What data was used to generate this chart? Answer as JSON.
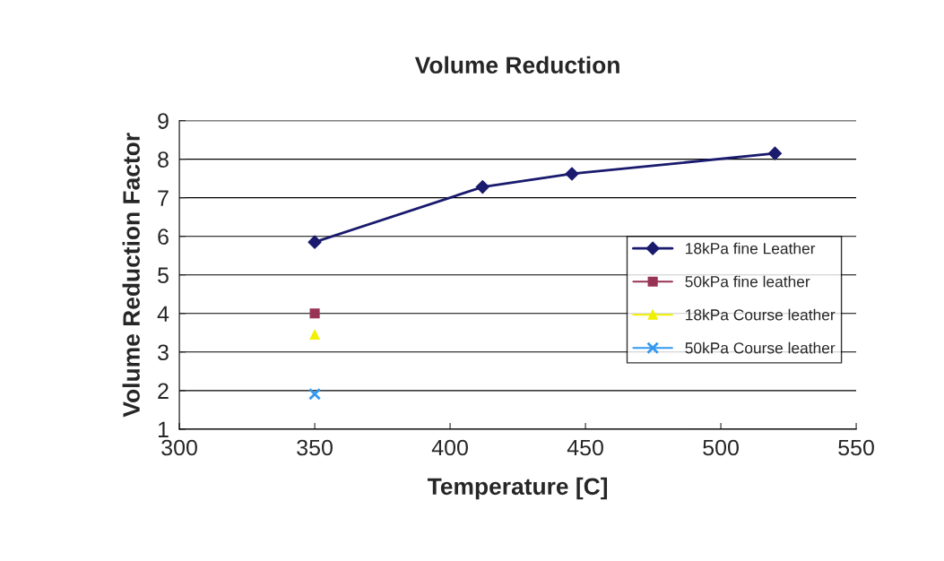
{
  "chart_data": {
    "type": "line",
    "title": "Volume Reduction",
    "xlabel": "Temperature [C]",
    "ylabel": "Volume Reduction Factor",
    "series": [
      {
        "name": "18kPa fine Leather",
        "color": "#1a1a6e",
        "marker": "diamond",
        "x": [
          350,
          412,
          445,
          520
        ],
        "values": [
          5.85,
          7.28,
          7.62,
          8.15
        ]
      },
      {
        "name": "50kPa fine leather",
        "color": "#993355",
        "marker": "square",
        "type": "scatter",
        "x": [
          350
        ],
        "values": [
          4.0
        ]
      },
      {
        "name": "18kPa Course leather",
        "color": "#f0f000",
        "marker": "triangle",
        "type": "scatter",
        "x": [
          350
        ],
        "values": [
          3.45
        ]
      },
      {
        "name": "50kPa Course leather",
        "color": "#3399ee",
        "marker": "cross",
        "type": "scatter",
        "x": [
          350
        ],
        "values": [
          1.91
        ]
      }
    ],
    "xlim": [
      300,
      550
    ],
    "xticks": [
      300,
      350,
      400,
      450,
      500,
      550
    ],
    "ylim": [
      1,
      9
    ],
    "yticks": [
      1,
      2,
      3,
      4,
      5,
      6,
      7,
      8,
      9
    ],
    "grid": "y",
    "legend": "right"
  }
}
